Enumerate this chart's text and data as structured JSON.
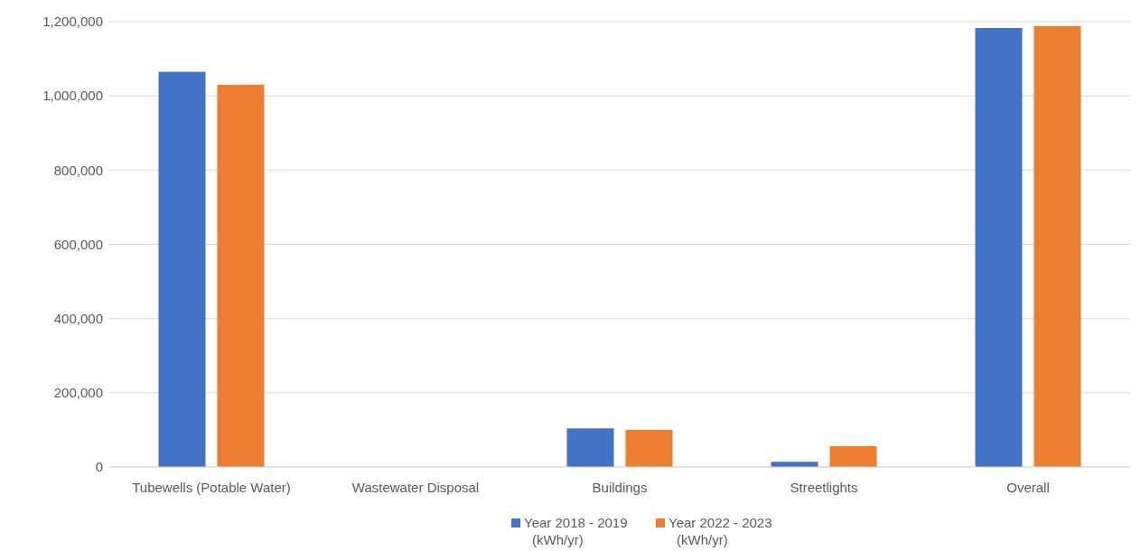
{
  "chart_data": {
    "type": "bar",
    "categories": [
      "Tubewells (Potable Water)",
      "Wastewater Disposal",
      "Buildings",
      "Streetlights",
      "Overall"
    ],
    "series": [
      {
        "name": "Year 2018 - 2019 (kWh/yr)",
        "color": "#4472c4",
        "values": [
          1065000,
          0,
          104000,
          14000,
          1183000
        ]
      },
      {
        "name": "Year 2022 - 2023 (kWh/yr)",
        "color": "#ed7d31",
        "values": [
          1030000,
          0,
          100000,
          56000,
          1188000
        ]
      }
    ],
    "ylim": [
      0,
      1200000
    ],
    "yticks": [
      {
        "value": 0,
        "label": "0"
      },
      {
        "value": 200000,
        "label": "200,000"
      },
      {
        "value": 400000,
        "label": "400,000"
      },
      {
        "value": 600000,
        "label": "600,000"
      },
      {
        "value": 800000,
        "label": "800,000"
      },
      {
        "value": 1000000,
        "label": "1,000,000"
      },
      {
        "value": 1200000,
        "label": "1,200,000"
      }
    ],
    "grid": "y",
    "legend": "bottom"
  }
}
